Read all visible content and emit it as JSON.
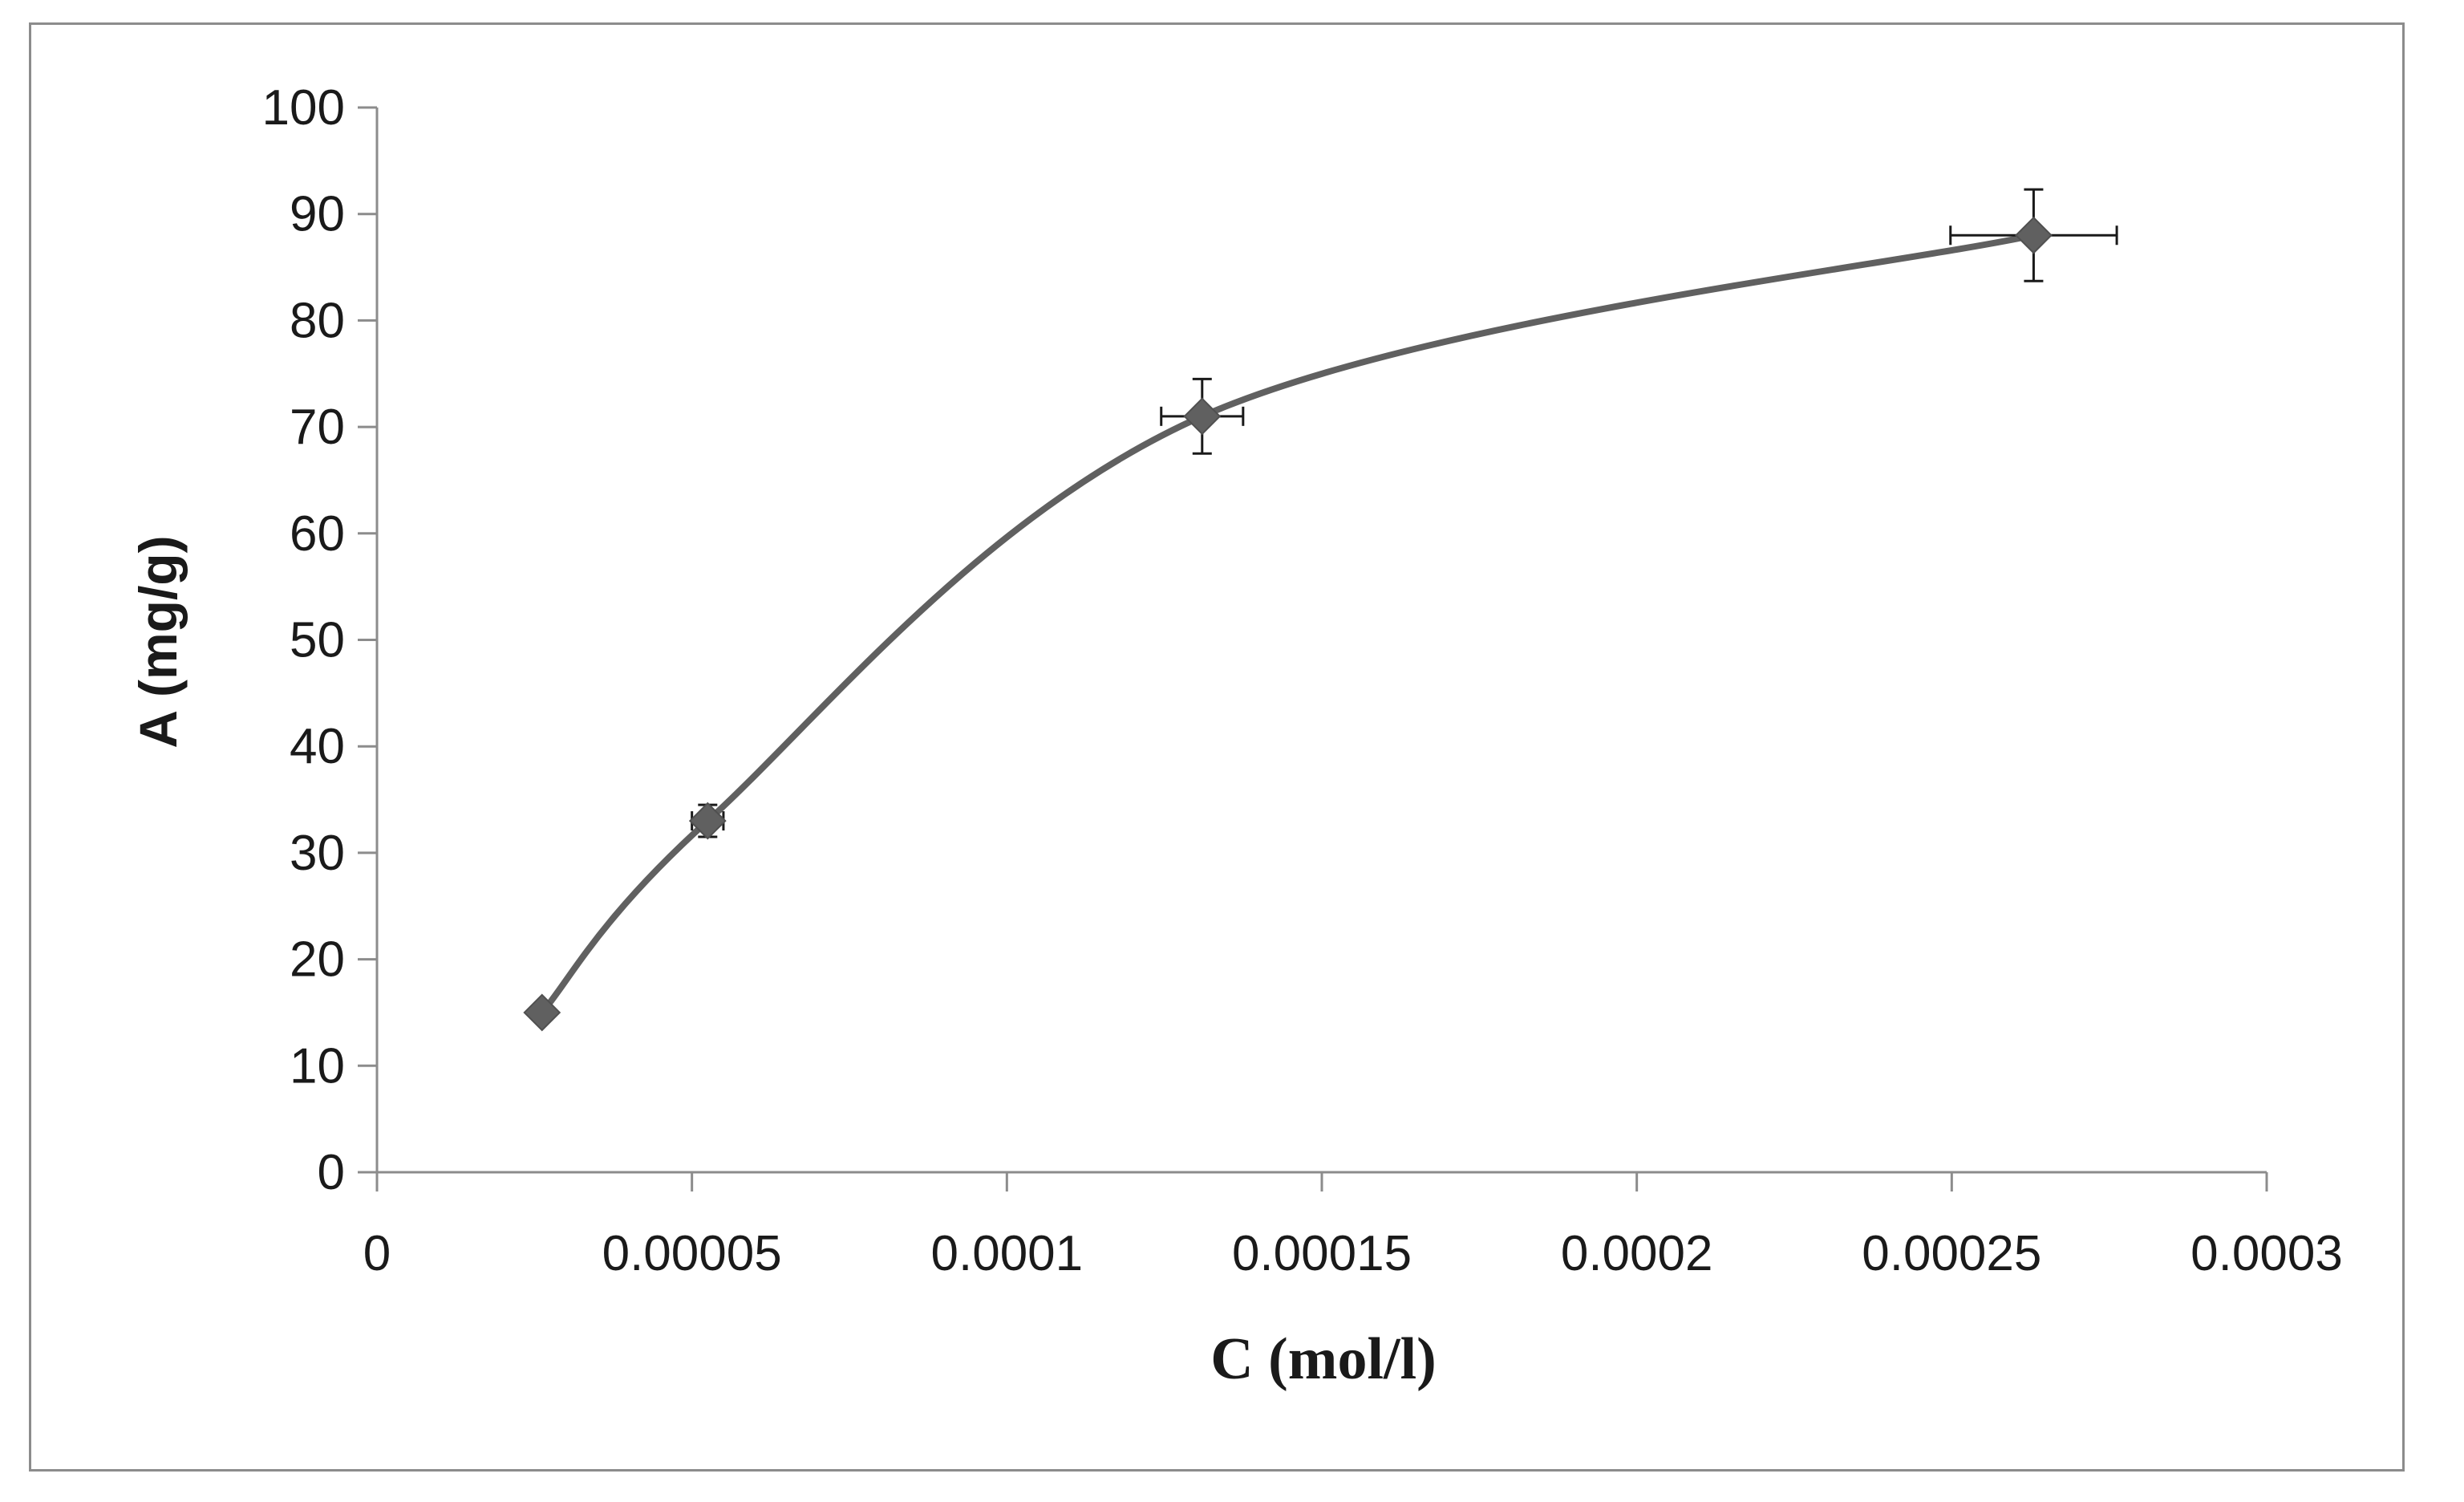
{
  "chart_data": {
    "type": "scatter",
    "title": "",
    "xlabel": "C (mol/l)",
    "ylabel": "A (mg/g)",
    "xlim": [
      0,
      0.0003
    ],
    "ylim": [
      0,
      100
    ],
    "x_ticks": [
      "0",
      "0.00005",
      "0.0001",
      "0.00015",
      "0.0002",
      "0.00025",
      "0.0003"
    ],
    "y_ticks": [
      "0",
      "10",
      "20",
      "30",
      "40",
      "50",
      "60",
      "70",
      "80",
      "90",
      "100"
    ],
    "grid": false,
    "legend": "none",
    "line_style": "smoothed",
    "marker": "diamond",
    "series": [
      {
        "x": [
          2.62e-05,
          5.25e-05,
          0.000131,
          0.000263
        ],
        "y": [
          15,
          33,
          71,
          88
        ],
        "x_error": [
          5e-07,
          2.5e-06,
          6.5e-06,
          1.32e-05
        ],
        "y_error": [
          0.5,
          1.5,
          3.5,
          4.3
        ]
      }
    ],
    "colors": {
      "series": "#606060",
      "axis": "#8c8c8c",
      "error_bar": "#1a1a1a"
    }
  }
}
